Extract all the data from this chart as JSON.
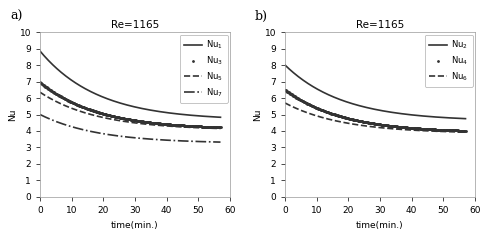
{
  "title": "Re=1165",
  "xlabel": "time(min.)",
  "ylabel": "Nu",
  "xlim": [
    0,
    60
  ],
  "ylim": [
    0,
    10
  ],
  "yticks": [
    0,
    1,
    2,
    3,
    4,
    5,
    6,
    7,
    8,
    9,
    10
  ],
  "xticks": [
    0,
    10,
    20,
    30,
    40,
    50,
    60
  ],
  "panel_a": {
    "label": "a)",
    "curves": [
      {
        "label": "Nu$_1$",
        "start": 8.85,
        "end": 4.65,
        "style": "solid",
        "lw": 1.2,
        "marker": "none",
        "ms": 0
      },
      {
        "label": "Nu$_3$",
        "start": 6.95,
        "end": 4.1,
        "style": "none",
        "lw": 0,
        "marker": ".",
        "ms": 2.0
      },
      {
        "label": "Nu$_5$",
        "start": 6.35,
        "end": 4.05,
        "style": "dashed",
        "lw": 1.2,
        "marker": "none",
        "ms": 0
      },
      {
        "label": "Nu$_7$",
        "start": 5.0,
        "end": 3.25,
        "style": "dashdot",
        "lw": 1.2,
        "marker": "none",
        "ms": 0
      }
    ]
  },
  "panel_b": {
    "label": "b)",
    "curves": [
      {
        "label": "Nu$_2$",
        "start": 8.0,
        "end": 4.6,
        "style": "solid",
        "lw": 1.2,
        "marker": "none",
        "ms": 0
      },
      {
        "label": "Nu$_4$",
        "start": 6.5,
        "end": 3.9,
        "style": "none",
        "lw": 0,
        "marker": ".",
        "ms": 2.0
      },
      {
        "label": "Nu$_6$",
        "start": 5.7,
        "end": 3.85,
        "style": "dashed",
        "lw": 1.2,
        "marker": "none",
        "ms": 0
      }
    ]
  },
  "color": "#333333",
  "bg_color": "white",
  "legend_fontsize": 6,
  "axis_fontsize": 6.5,
  "title_fontsize": 7.5,
  "label_fontsize": 9,
  "decay_k": 0.055
}
